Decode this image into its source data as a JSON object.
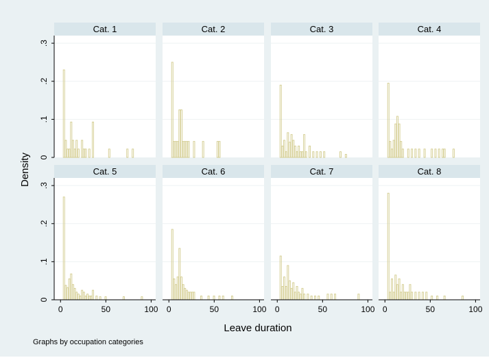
{
  "colors": {
    "background": "#eaf1f3",
    "plot_region": "#ffffff",
    "strip": "#d9e6eb",
    "bar": "#d2cb8c",
    "gridline": "#eef2f3",
    "axis": "#000000"
  },
  "chart_data": {
    "type": "bar",
    "subtype": "histogram",
    "xlabel": "Leave duration",
    "ylabel": "Density",
    "note": "Graphs by occupation categories",
    "xlim": [
      -7,
      105
    ],
    "ylim": [
      0,
      0.32
    ],
    "xticks": [
      0,
      50,
      100
    ],
    "xtick_labels": [
      "0",
      "50",
      "100"
    ],
    "yticks": [
      0,
      0.1,
      0.2,
      0.3
    ],
    "ytick_labels": [
      "0",
      ".1",
      ".2",
      ".3"
    ],
    "grid": true,
    "layout": "2x4 panels",
    "panels": [
      {
        "name": "Cat. 1",
        "x": [
          4,
          6,
          8,
          10,
          12,
          14,
          16,
          18,
          20,
          24,
          26,
          28,
          32,
          36,
          54,
          74,
          80
        ],
        "values": [
          0.23,
          0.045,
          0.022,
          0.022,
          0.093,
          0.045,
          0.022,
          0.045,
          0.022,
          0.045,
          0.022,
          0.022,
          0.022,
          0.093,
          0.022,
          0.022,
          0.022
        ]
      },
      {
        "name": "Cat. 2",
        "x": [
          4,
          6,
          8,
          10,
          12,
          14,
          16,
          18,
          20,
          22,
          28,
          38,
          54,
          56
        ],
        "values": [
          0.25,
          0.042,
          0.042,
          0.042,
          0.125,
          0.125,
          0.042,
          0.042,
          0.042,
          0.042,
          0.042,
          0.042,
          0.042,
          0.042
        ]
      },
      {
        "name": "Cat. 3",
        "x": [
          4,
          6,
          8,
          10,
          12,
          14,
          16,
          18,
          20,
          22,
          24,
          26,
          28,
          30,
          32,
          36,
          40,
          44,
          48,
          52,
          70,
          76
        ],
        "values": [
          0.19,
          0.03,
          0.045,
          0.015,
          0.065,
          0.04,
          0.06,
          0.045,
          0.03,
          0.015,
          0.03,
          0.015,
          0.015,
          0.06,
          0.015,
          0.03,
          0.015,
          0.015,
          0.015,
          0.015,
          0.015,
          0.008
        ]
      },
      {
        "name": "Cat. 4",
        "x": [
          4,
          6,
          8,
          10,
          12,
          14,
          16,
          18,
          20,
          26,
          30,
          34,
          38,
          44,
          52,
          56,
          60,
          64,
          66,
          76
        ],
        "values": [
          0.195,
          0.042,
          0.022,
          0.045,
          0.088,
          0.108,
          0.088,
          0.042,
          0.022,
          0.022,
          0.022,
          0.022,
          0.022,
          0.022,
          0.022,
          0.022,
          0.022,
          0.022,
          0.022,
          0.022
        ]
      },
      {
        "name": "Cat. 5",
        "x": [
          4,
          6,
          8,
          10,
          12,
          14,
          16,
          18,
          20,
          22,
          24,
          26,
          28,
          30,
          32,
          34,
          36,
          40,
          44,
          50,
          70,
          90
        ],
        "values": [
          0.27,
          0.038,
          0.032,
          0.055,
          0.068,
          0.04,
          0.03,
          0.02,
          0.015,
          0.01,
          0.025,
          0.02,
          0.01,
          0.015,
          0.01,
          0.01,
          0.025,
          0.01,
          0.008,
          0.008,
          0.008,
          0.008
        ]
      },
      {
        "name": "Cat. 6",
        "x": [
          4,
          6,
          8,
          10,
          12,
          14,
          16,
          18,
          20,
          22,
          24,
          26,
          28,
          36,
          44,
          50,
          56,
          60,
          70
        ],
        "values": [
          0.185,
          0.055,
          0.04,
          0.06,
          0.135,
          0.06,
          0.04,
          0.03,
          0.025,
          0.02,
          0.02,
          0.02,
          0.02,
          0.01,
          0.01,
          0.01,
          0.01,
          0.01,
          0.01
        ]
      },
      {
        "name": "Cat. 7",
        "x": [
          4,
          6,
          8,
          10,
          12,
          14,
          16,
          18,
          20,
          22,
          24,
          26,
          28,
          30,
          34,
          38,
          42,
          46,
          56,
          60,
          64,
          90
        ],
        "values": [
          0.115,
          0.035,
          0.06,
          0.035,
          0.09,
          0.05,
          0.03,
          0.045,
          0.02,
          0.035,
          0.02,
          0.015,
          0.03,
          0.015,
          0.015,
          0.01,
          0.01,
          0.01,
          0.015,
          0.015,
          0.015,
          0.015
        ]
      },
      {
        "name": "Cat. 8",
        "x": [
          4,
          6,
          8,
          10,
          12,
          14,
          16,
          18,
          20,
          22,
          24,
          26,
          28,
          30,
          34,
          38,
          42,
          46,
          52,
          58,
          66,
          86
        ],
        "values": [
          0.28,
          0.02,
          0.055,
          0.02,
          0.065,
          0.04,
          0.055,
          0.02,
          0.04,
          0.02,
          0.02,
          0.02,
          0.04,
          0.02,
          0.02,
          0.02,
          0.02,
          0.02,
          0.01,
          0.01,
          0.01,
          0.01
        ]
      }
    ]
  }
}
